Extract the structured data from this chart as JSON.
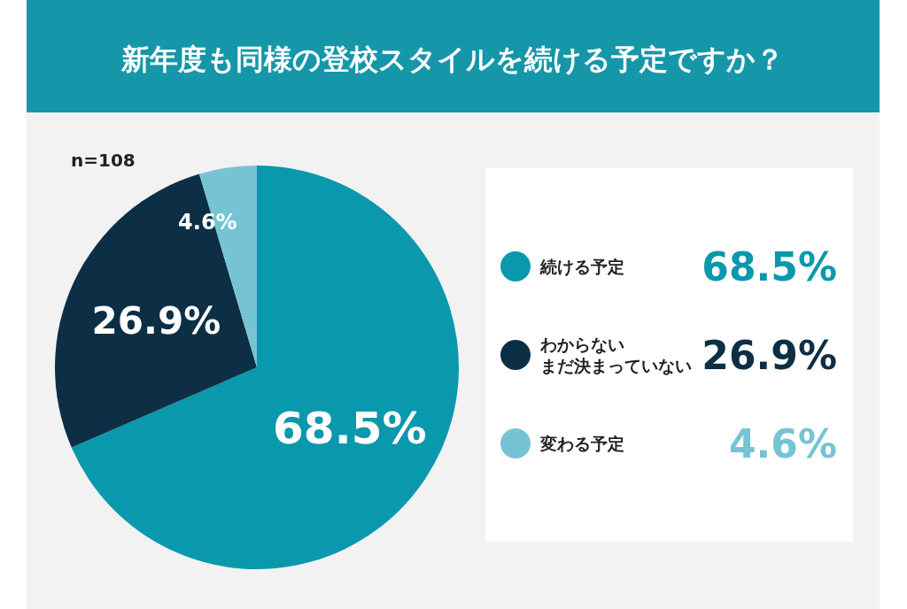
{
  "chart_data": {
    "type": "pie",
    "title": "新年度も同様の登校スタイルを続ける予定ですか？",
    "categories": [
      "続ける予定",
      "わからないまだ決まっていない",
      "変わる予定"
    ],
    "values": [
      68.5,
      26.9,
      4.6
    ],
    "value_labels": [
      "68.5%",
      "26.9%",
      "4.6%"
    ],
    "colors": [
      "#0a98ad",
      "#0c2f45",
      "#76c4d3"
    ],
    "annotations": [
      "n=108"
    ],
    "legend": "right"
  }
}
